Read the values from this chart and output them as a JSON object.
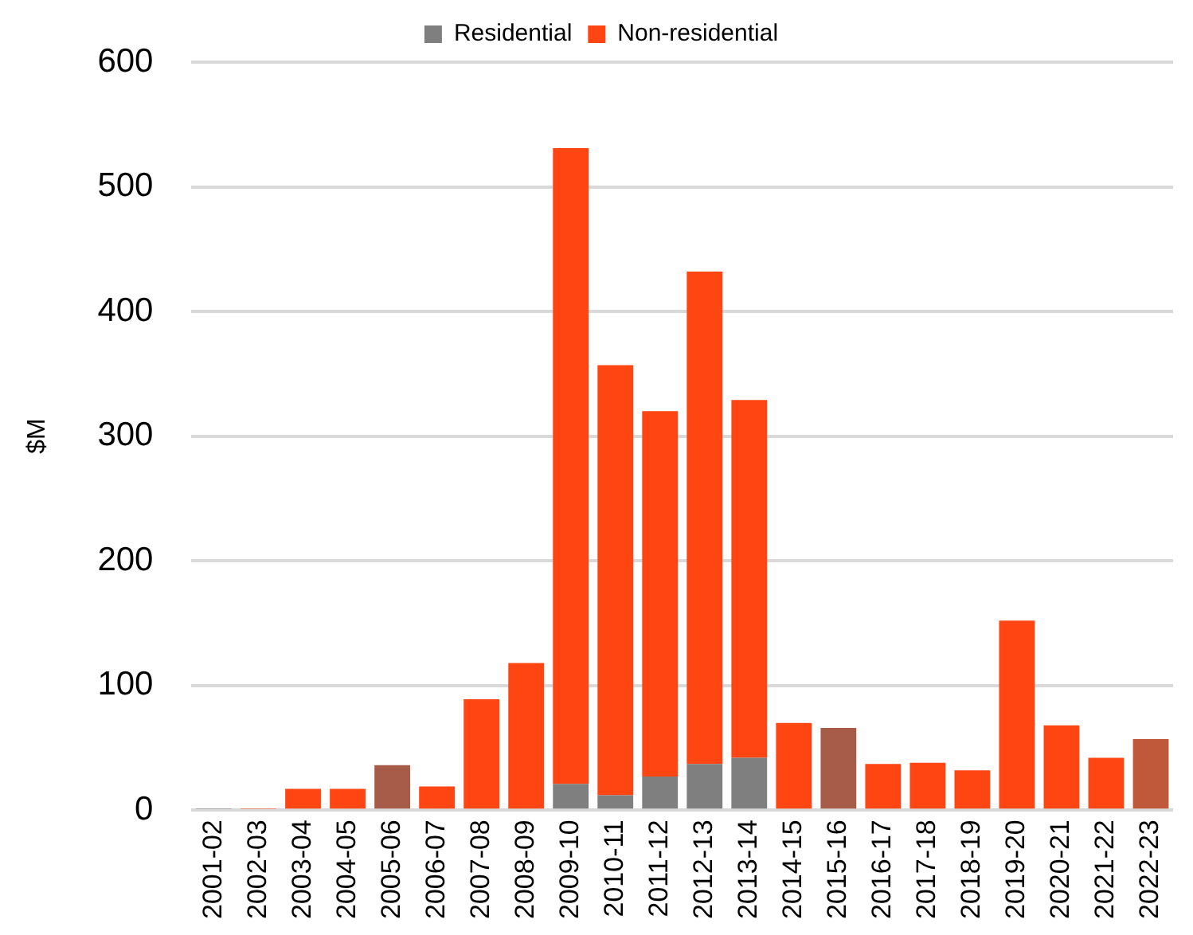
{
  "chart_data": {
    "type": "bar",
    "stacked": true,
    "ylabel": "$M",
    "categories": [
      "2001-02",
      "2002-03",
      "2003-04",
      "2004-05",
      "2005-06",
      "2006-07",
      "2007-08",
      "2008-09",
      "2009-10",
      "2010-11",
      "2011-12",
      "2012-13",
      "2013-14",
      "2014-15",
      "2015-16",
      "2016-17",
      "2017-18",
      "2018-19",
      "2019-20",
      "2020-21",
      "2021-22",
      "2022-23"
    ],
    "series": [
      {
        "name": "Residential",
        "color": "#7f7f7f",
        "values": [
          1,
          0,
          0,
          0,
          0,
          0,
          0,
          0,
          21,
          12,
          27,
          37,
          42,
          0,
          0,
          0,
          0,
          0,
          0,
          0,
          0,
          0
        ]
      },
      {
        "name": "Non-residential",
        "color": "#ff4512",
        "colors": [
          "#ff4512",
          "#ff4512",
          "#ff4512",
          "#ff4512",
          "#a65c48",
          "#ff4512",
          "#ff4512",
          "#ff4512",
          "#ff4512",
          "#ff4512",
          "#ff4512",
          "#ff4512",
          "#ff4512",
          "#ff4512",
          "#a65c48",
          "#ff4512",
          "#ff4512",
          "#ff4512",
          "#ff4512",
          "#ff4512",
          "#ff4512",
          "#c0583a"
        ],
        "values": [
          0,
          1,
          17,
          17,
          36,
          19,
          89,
          118,
          510,
          345,
          293,
          395,
          287,
          70,
          66,
          37,
          38,
          32,
          152,
          68,
          42,
          57
        ]
      }
    ],
    "ylim": [
      0,
      600
    ],
    "yticks": [
      0,
      100,
      200,
      300,
      400,
      500,
      600
    ],
    "grid": "y",
    "legend": "top"
  }
}
